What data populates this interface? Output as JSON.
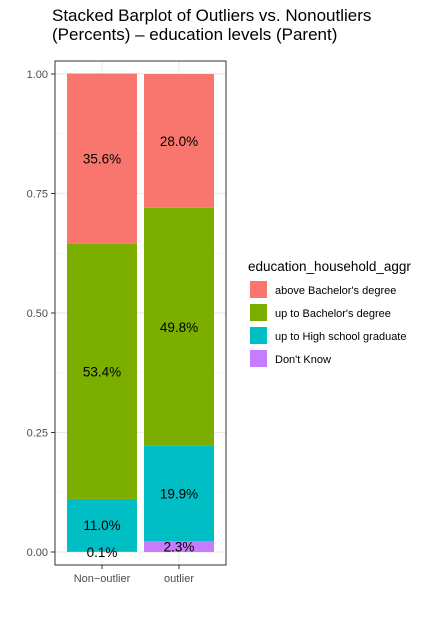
{
  "chart_data": {
    "type": "bar",
    "stacked": true,
    "title_lines": [
      "Stacked Barplot of Outliers vs. Nonoutliers",
      "(Percents) – education levels (Parent)"
    ],
    "xlabel": "",
    "ylabel": "",
    "categories": [
      "Non−outlier",
      "outlier"
    ],
    "ylim": [
      0,
      1
    ],
    "yticks": [
      0,
      0.25,
      0.5,
      0.75,
      1
    ],
    "ytick_labels": [
      "0.00",
      "0.25",
      "0.50",
      "0.75",
      "1.00"
    ],
    "legend": {
      "title": "education_household_aggr",
      "placement": "right"
    },
    "series": [
      {
        "name": "Don't Know",
        "color": "#C77CFF",
        "values": [
          0.001,
          0.023
        ],
        "labels": [
          "0.1%",
          "2.3%"
        ]
      },
      {
        "name": "up to High school graduate",
        "color": "#00BFC4",
        "values": [
          0.11,
          0.199
        ],
        "labels": [
          "11.0%",
          "19.9%"
        ]
      },
      {
        "name": "up to Bachelor's degree",
        "color": "#7CAE00",
        "values": [
          0.534,
          0.498
        ],
        "labels": [
          "53.4%",
          "49.8%"
        ]
      },
      {
        "name": "above Bachelor's degree",
        "color": "#F8766D",
        "values": [
          0.356,
          0.28
        ],
        "labels": [
          "35.6%",
          "28.0%"
        ]
      }
    ],
    "legend_order": [
      "above Bachelor's degree",
      "up to Bachelor's degree",
      "up to High school graduate",
      "Don't Know"
    ],
    "grid": true,
    "theme": {
      "panel_background": "#ffffff",
      "grid_color": "#ebebeb",
      "panel_border": "#333333"
    }
  }
}
